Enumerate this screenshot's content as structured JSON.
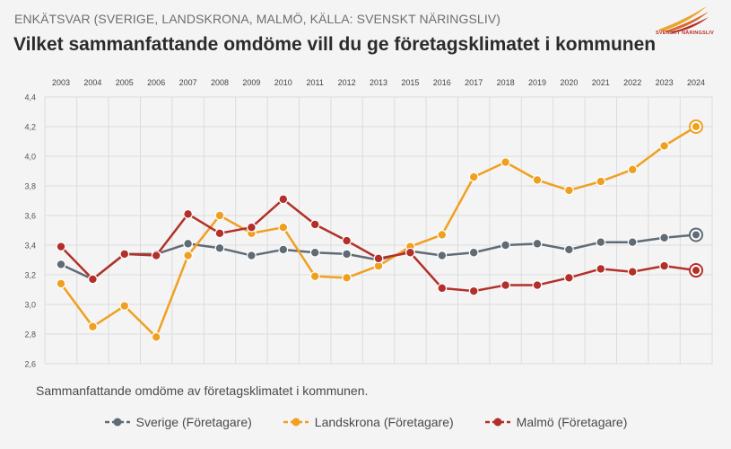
{
  "header": {
    "subtitle": "ENKÄTSVAR (SVERIGE, LANDSKRONA, MALMÖ, KÄLLA: SVENSKT NÄRINGSLIV)",
    "title": "Vilket sammanfattande omdöme vill du ge företagsklimatet i kommunen",
    "logo_text": "SVENSKT NÄRINGSLIV"
  },
  "caption": "Sammanfattande omdöme av företagsklimatet i kommunen.",
  "colors": {
    "sverige": "#5f6b75",
    "landskrona": "#f0a020",
    "malmo": "#b3302a",
    "grid": "#dcdcdc",
    "background": "#f4f4f4"
  },
  "chart_data": {
    "type": "line",
    "title": "Vilket sammanfattande omdöme vill du ge företagsklimatet i kommunen",
    "xlabel": "",
    "ylabel": "",
    "x_axis_position": "top",
    "categories": [
      "2003",
      "2004",
      "2005",
      "2006",
      "2007",
      "2008",
      "2009",
      "2010",
      "2011",
      "2012",
      "2013",
      "2015",
      "2016",
      "2017",
      "2018",
      "2019",
      "2020",
      "2021",
      "2022",
      "2023",
      "2024"
    ],
    "ylim": [
      2.6,
      4.4
    ],
    "yticks": [
      "2,6",
      "2,8",
      "3,0",
      "3,2",
      "3,4",
      "3,6",
      "3,8",
      "4,0",
      "4,2",
      "4,4"
    ],
    "grid": true,
    "legend_position": "bottom",
    "series": [
      {
        "name": "Sverige (Företagare)",
        "key": "sverige",
        "values": [
          3.27,
          3.17,
          3.34,
          3.34,
          3.41,
          3.38,
          3.33,
          3.37,
          3.35,
          3.34,
          3.3,
          3.36,
          3.33,
          3.35,
          3.4,
          3.41,
          3.37,
          3.42,
          3.42,
          3.45,
          3.47
        ]
      },
      {
        "name": "Landskrona (Företagare)",
        "key": "landskrona",
        "values": [
          3.14,
          2.85,
          2.99,
          2.78,
          3.33,
          3.6,
          3.48,
          3.52,
          3.19,
          3.18,
          3.26,
          3.39,
          3.47,
          3.86,
          3.96,
          3.84,
          3.77,
          3.83,
          3.91,
          4.07,
          4.2
        ]
      },
      {
        "name": "Malmö (Företagare)",
        "key": "malmo",
        "values": [
          3.39,
          3.17,
          3.34,
          3.33,
          3.61,
          3.48,
          3.52,
          3.71,
          3.54,
          3.43,
          3.31,
          3.35,
          3.11,
          3.09,
          3.13,
          3.13,
          3.18,
          3.24,
          3.22,
          3.26,
          3.23
        ]
      }
    ]
  }
}
